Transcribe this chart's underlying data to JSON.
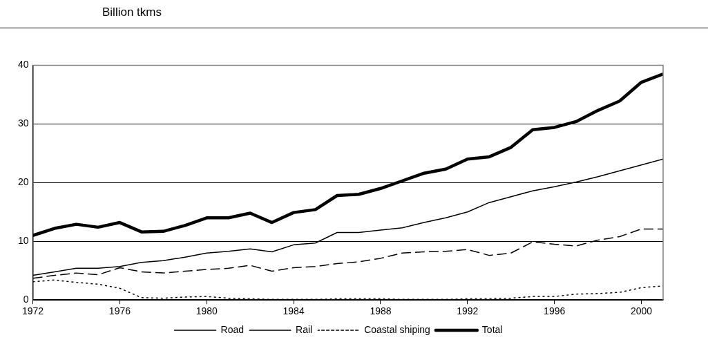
{
  "chart_data": {
    "type": "line",
    "title": "Billion tkms",
    "x": [
      1972,
      1973,
      1974,
      1975,
      1976,
      1977,
      1978,
      1979,
      1980,
      1981,
      1982,
      1983,
      1984,
      1985,
      1986,
      1987,
      1988,
      1989,
      1990,
      1991,
      1992,
      1993,
      1994,
      1995,
      1996,
      1997,
      1998,
      1999,
      2000,
      2001
    ],
    "series": [
      {
        "name": "Road",
        "color": "#000000",
        "line_style": "solid",
        "values": [
          4.2,
          4.8,
          5.4,
          5.4,
          5.7,
          6.4,
          6.7,
          7.3,
          8.0,
          8.3,
          8.7,
          8.2,
          9.4,
          9.7,
          11.5,
          11.5,
          11.9,
          12.3,
          13.2,
          14.0,
          15.0,
          16.6,
          17.6,
          18.6,
          19.3,
          20.1,
          21.0,
          22.0,
          23.0,
          24.0
        ]
      },
      {
        "name": "Rail",
        "color": "#000000",
        "line_style": "dashed",
        "values": [
          3.7,
          4.2,
          4.6,
          4.3,
          5.5,
          4.8,
          4.6,
          4.9,
          5.2,
          5.4,
          5.9,
          4.9,
          5.5,
          5.7,
          6.2,
          6.5,
          7.1,
          8.0,
          8.2,
          8.3,
          8.6,
          7.6,
          8.0,
          9.9,
          9.5,
          9.2,
          10.2,
          10.8,
          12.1,
          12.1
        ]
      },
      {
        "name": "Coastal shiping",
        "color": "#000000",
        "line_style": "dotted",
        "values": [
          3.1,
          3.4,
          3.0,
          2.7,
          2.0,
          0.4,
          0.3,
          0.5,
          0.6,
          0.3,
          0.2,
          0.1,
          0.1,
          0.1,
          0.2,
          0.2,
          0.2,
          0.1,
          0.1,
          0.1,
          0.2,
          0.2,
          0.3,
          0.6,
          0.6,
          1.0,
          1.1,
          1.3,
          2.1,
          2.4
        ]
      },
      {
        "name": "Total",
        "color": "#000000",
        "line_style": "solid",
        "values": [
          11.0,
          12.2,
          12.9,
          12.4,
          13.2,
          11.6,
          11.7,
          12.7,
          14.0,
          14.0,
          14.8,
          13.2,
          14.9,
          15.4,
          17.8,
          18.0,
          19.0,
          20.3,
          21.6,
          22.3,
          24.0,
          24.4,
          26.0,
          29.0,
          29.4,
          30.4,
          32.3,
          33.9,
          37.1,
          38.5
        ]
      }
    ],
    "xlim": [
      1972,
      2001
    ],
    "xticks": [
      1972,
      1976,
      1980,
      1984,
      1988,
      1992,
      1996,
      2000
    ],
    "ylim": [
      0,
      40
    ],
    "yticks": [
      0,
      10,
      20,
      30,
      40
    ],
    "grid": "y",
    "legend": "bottom",
    "marker": "none"
  }
}
